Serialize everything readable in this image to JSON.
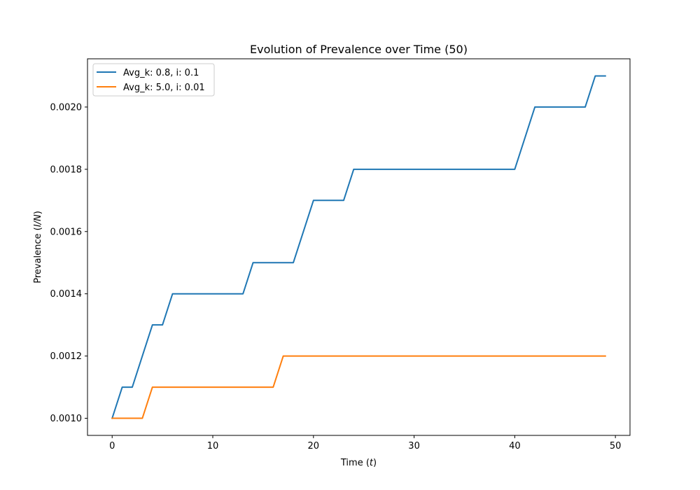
{
  "chart_data": {
    "type": "line",
    "title": "Evolution of Prevalence over Time (50)",
    "xlabel_main": "Time (",
    "xlabel_var": "t",
    "xlabel_end": ")",
    "ylabel_main": "Prevalence (",
    "ylabel_var": "I/N",
    "ylabel_end": ")",
    "xlim": [
      -2.45,
      51.45
    ],
    "ylim": [
      0.000945,
      0.002155
    ],
    "x_ticks": [
      0,
      10,
      20,
      30,
      40,
      50
    ],
    "x_tick_labels": [
      "0",
      "10",
      "20",
      "30",
      "40",
      "50"
    ],
    "y_ticks": [
      0.001,
      0.0012,
      0.0014,
      0.0016,
      0.0018,
      0.002
    ],
    "y_tick_labels": [
      "0.0010",
      "0.0012",
      "0.0014",
      "0.0016",
      "0.0018",
      "0.0020"
    ],
    "legend_position": "top-left",
    "series": [
      {
        "name": "Avg_k: 0.8, i: 0.1",
        "color": "#1f77b4",
        "x": [
          0,
          1,
          2,
          3,
          4,
          5,
          6,
          7,
          8,
          9,
          10,
          11,
          12,
          13,
          14,
          15,
          16,
          17,
          18,
          19,
          20,
          21,
          22,
          23,
          24,
          25,
          26,
          27,
          28,
          29,
          30,
          31,
          32,
          33,
          34,
          35,
          36,
          37,
          38,
          39,
          40,
          41,
          42,
          43,
          44,
          45,
          46,
          47,
          48,
          49
        ],
        "values": [
          0.001,
          0.0011,
          0.0011,
          0.0012,
          0.0013,
          0.0013,
          0.0014,
          0.0014,
          0.0014,
          0.0014,
          0.0014,
          0.0014,
          0.0014,
          0.0014,
          0.0015,
          0.0015,
          0.0015,
          0.0015,
          0.0015,
          0.0016,
          0.0017,
          0.0017,
          0.0017,
          0.0017,
          0.0018,
          0.0018,
          0.0018,
          0.0018,
          0.0018,
          0.0018,
          0.0018,
          0.0018,
          0.0018,
          0.0018,
          0.0018,
          0.0018,
          0.0018,
          0.0018,
          0.0018,
          0.0018,
          0.0018,
          0.0019,
          0.002,
          0.002,
          0.002,
          0.002,
          0.002,
          0.002,
          0.0021,
          0.0021
        ]
      },
      {
        "name": "Avg_k: 5.0, i: 0.01",
        "color": "#ff7f0e",
        "x": [
          0,
          1,
          2,
          3,
          4,
          5,
          6,
          7,
          8,
          9,
          10,
          11,
          12,
          13,
          14,
          15,
          16,
          17,
          18,
          19,
          20,
          21,
          22,
          23,
          24,
          25,
          26,
          27,
          28,
          29,
          30,
          31,
          32,
          33,
          34,
          35,
          36,
          37,
          38,
          39,
          40,
          41,
          42,
          43,
          44,
          45,
          46,
          47,
          48,
          49
        ],
        "values": [
          0.001,
          0.001,
          0.001,
          0.001,
          0.0011,
          0.0011,
          0.0011,
          0.0011,
          0.0011,
          0.0011,
          0.0011,
          0.0011,
          0.0011,
          0.0011,
          0.0011,
          0.0011,
          0.0011,
          0.0012,
          0.0012,
          0.0012,
          0.0012,
          0.0012,
          0.0012,
          0.0012,
          0.0012,
          0.0012,
          0.0012,
          0.0012,
          0.0012,
          0.0012,
          0.0012,
          0.0012,
          0.0012,
          0.0012,
          0.0012,
          0.0012,
          0.0012,
          0.0012,
          0.0012,
          0.0012,
          0.0012,
          0.0012,
          0.0012,
          0.0012,
          0.0012,
          0.0012,
          0.0012,
          0.0012,
          0.0012,
          0.0012
        ]
      }
    ]
  }
}
